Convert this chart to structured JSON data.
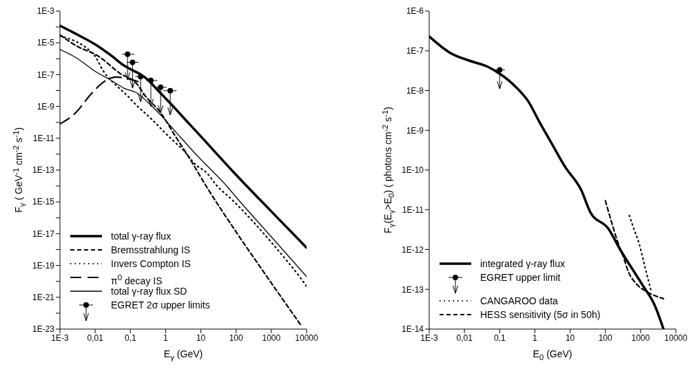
{
  "chart_data": [
    {
      "type": "line",
      "xlabel": "E$_{γ}$  (GeV)",
      "ylabel": "F$_{γ}$ ( GeV$^{-1}$ cm$^{-2}$ s$^{-1}$)",
      "log": "xy",
      "legend": "bottom left",
      "xlim": [
        0.001,
        10000
      ],
      "ylim": [
        1e-23,
        0.001
      ],
      "xticks": [
        {
          "value": 0.001,
          "label": "1E-3"
        },
        {
          "value": 0.01,
          "label": "0,01"
        },
        {
          "value": 0.1,
          "label": "0,1"
        },
        1,
        10,
        100,
        1000,
        10000
      ],
      "yticks": [
        {
          "value": 1e-23,
          "label": "1E-23"
        },
        {
          "value": 1e-22,
          "label": null
        },
        {
          "value": 1e-21,
          "label": "1E-21"
        },
        {
          "value": 1e-20,
          "label": null
        },
        {
          "value": 1e-19,
          "label": "1E-19"
        },
        {
          "value": 1e-18,
          "label": null
        },
        {
          "value": 1e-17,
          "label": "1E-17"
        },
        {
          "value": 1e-16,
          "label": null
        },
        {
          "value": 1e-15,
          "label": "1E-15"
        },
        {
          "value": 1e-14,
          "label": null
        },
        {
          "value": 1e-13,
          "label": "1E-13"
        },
        {
          "value": 1e-12,
          "label": null
        },
        {
          "value": 1e-11,
          "label": "1E-11"
        },
        {
          "value": 1e-10,
          "label": null
        },
        {
          "value": 1e-09,
          "label": "1E-9"
        },
        {
          "value": 1e-08,
          "label": null
        },
        {
          "value": 1e-07,
          "label": "1E-7"
        },
        {
          "value": 1e-06,
          "label": null
        },
        {
          "value": 1e-05,
          "label": "1E-5"
        },
        {
          "value": 0.0001,
          "label": null
        },
        {
          "value": 0.001,
          "label": "1E-3"
        }
      ],
      "series": [
        {
          "name": "total γ-ray flux",
          "color": "#000000",
          "line_style": "solid",
          "x": [
            0.001,
            0.0032,
            0.01,
            0.032,
            0.063,
            0.1,
            0.2,
            0.32,
            0.5,
            1,
            2,
            3.2,
            10,
            100,
            1000,
            10000
          ],
          "values": [
            0.00012,
            3.2e-05,
            7.9e-06,
            1.3e-06,
            4e-07,
            2.2e-07,
            1e-07,
            4.5e-08,
            1.6e-08,
            3.2e-09,
            6.3e-10,
            2e-10,
            1.3e-11,
            5e-14,
            2.5e-16,
            1.3e-18
          ]
        },
        {
          "name": "Bremsstrahlung IS",
          "color": "#000000",
          "line_style": "dashed",
          "x": [
            0.001,
            0.0028,
            0.0126,
            0.048,
            0.16,
            0.25,
            0.72,
            1.8,
            5.2,
            15,
            100,
            1000,
            7100
          ],
          "values": [
            3.2e-05,
            6.8e-06,
            1.4e-06,
            1.3e-07,
            2.3e-08,
            5.4e-09,
            4e-10,
            1.6e-11,
            4e-13,
            7.9e-15,
            1.3e-17,
            7.9e-21,
            1.6e-23
          ]
        },
        {
          "name": "Invers Compton IS",
          "color": "#000000",
          "line_style": "dotted",
          "x": [
            0.001,
            0.0095,
            0.017,
            0.048,
            0.089,
            0.16,
            0.3,
            0.55,
            1,
            1.8,
            3.3,
            6.9,
            15,
            26,
            81,
            1170,
            7100,
            10000
          ],
          "values": [
            2.7e-05,
            1.6e-06,
            1.7e-07,
            1.4e-08,
            4e-09,
            1e-09,
            2.9e-10,
            7.9e-11,
            2e-11,
            5.8e-12,
            1.6e-12,
            2.3e-13,
            6.3e-14,
            1.3e-14,
            1.2e-15,
            1.9e-18,
            1.4e-20,
            5e-21
          ]
        },
        {
          "name": "π$^{0}$ decay IS",
          "color": "#000000",
          "line_style": "dashed",
          "x": [
            0.001,
            0.0028,
            0.0079,
            0.023,
            0.04,
            0.063,
            0.1,
            0.2
          ],
          "values": [
            7.9e-11,
            4e-10,
            6.6e-09,
            5.1e-08,
            7.1e-08,
            6.3e-08,
            5e-08,
            3.2e-08
          ]
        },
        {
          "name": "total γ-ray flux SD",
          "color": "#000000",
          "line_style": "solid",
          "x": [
            0.001,
            0.0028,
            0.011,
            0.027,
            0.066,
            0.16,
            0.3,
            0.72,
            1.8,
            6.9,
            58,
            100,
            1000,
            10000
          ],
          "values": [
            3.8e-06,
            1.2e-06,
            1.4e-07,
            4.7e-08,
            1.4e-08,
            6.6e-09,
            2e-09,
            2.9e-10,
            3e-11,
            1.1e-12,
            8.3e-15,
            2e-15,
            6.3e-18,
            2e-20
          ]
        },
        {
          "name": "EGRET 2σ upper limits",
          "type": "scatter",
          "color": "#000000",
          "marker": "circle",
          "x": [
            0.083,
            0.115,
            0.195,
            0.38,
            0.72,
            1.35
          ],
          "values": [
            1.9e-06,
            5.9e-07,
            7.6e-08,
            4.3e-08,
            1.6e-08,
            9.8e-09
          ],
          "errors": [
            [
              4.7e-08,
              1.9e-06
            ],
            [
              1.4e-08,
              5.9e-07
            ],
            [
              2e-09,
              7.6e-08
            ],
            [
              1e-09,
              4.3e-08
            ],
            [
              3.9e-10,
              1.6e-08
            ],
            [
              2.9e-10,
              9.8e-09
            ]
          ],
          "xerrors": [
            [
              0.058,
              0.129
            ],
            [
              0.079,
              0.17
            ],
            [
              0.14,
              0.27
            ],
            [
              0.28,
              0.58
            ],
            [
              0.48,
              1.07
            ],
            [
              0.87,
              2.04
            ]
          ]
        }
      ]
    },
    {
      "type": "line",
      "xlabel": "E$_{0}$  (GeV)",
      "ylabel": "F$_{γ}$(E$_{γ}$>E$_{0}$)  ( photons cm$^{-2}$ s$^{-1}$)",
      "log": "xy",
      "legend": "bottom left",
      "xlim": [
        0.001,
        10000
      ],
      "ylim": [
        1e-14,
        1e-06
      ],
      "xticks": [
        {
          "value": 0.001,
          "label": "1E-3"
        },
        {
          "value": 0.01,
          "label": "0,01"
        },
        {
          "value": 0.1,
          "label": "0,1"
        },
        1,
        10,
        100,
        1000,
        10000
      ],
      "yticks": [
        {
          "value": 1e-14,
          "label": "1E-14"
        },
        {
          "value": 1e-13,
          "label": "1E-13"
        },
        {
          "value": 1e-12,
          "label": "1E-12"
        },
        {
          "value": 1e-11,
          "label": "1E-11"
        },
        {
          "value": 1e-10,
          "label": "1E-10"
        },
        {
          "value": 1e-09,
          "label": "1E-9"
        },
        {
          "value": 1e-08,
          "label": "1E-8"
        },
        {
          "value": 1e-07,
          "label": "1E-7"
        },
        {
          "value": 1e-06,
          "label": "1E-6"
        }
      ],
      "series": [
        {
          "name": "integrated γ-ray flux",
          "color": "#000000",
          "line_style": "solid",
          "x": [
            0.001,
            0.0039,
            0.015,
            0.045,
            0.11,
            0.27,
            0.66,
            1.35,
            2.9,
            7.2,
            20.4,
            38,
            120,
            263,
            1120,
            2500,
            4470
          ],
          "values": [
            2.3e-07,
            8.9e-08,
            5.5e-08,
            4e-08,
            2.5e-08,
            1.3e-08,
            5.2e-09,
            1.6e-09,
            4.9e-10,
            1.2e-10,
            3.2e-11,
            8.5e-12,
            3.4e-12,
            1e-12,
            1.3e-13,
            4e-14,
            1e-14
          ]
        },
        {
          "name": "EGRET upper limit",
          "type": "scatter",
          "color": "#000000",
          "marker": "circle",
          "x": [
            0.1
          ],
          "values": [
            3.3e-08
          ],
          "errors": [
            [
              1.1e-08,
              3.3e-08
            ]
          ],
          "xerrors": [
            [
              0.063,
              0.14
            ]
          ]
        },
        {
          "name": "CANGAROO data",
          "color": "#000000",
          "line_style": "dotted",
          "x": [
            479,
            631,
            891,
            1380,
            2000
          ],
          "values": [
            7.2e-12,
            3.5e-12,
            1.5e-12,
            3.2e-13,
            8.9e-14
          ]
        },
        {
          "name": "HESS sensitivity (5σ in 50h)",
          "color": "#000000",
          "line_style": "dashed",
          "x": [
            100,
            155,
            240,
            331,
            447,
            741,
            1580,
            4470
          ],
          "values": [
            1.7e-11,
            4.4e-12,
            1.3e-12,
            6.2e-13,
            2.8e-13,
            1.4e-13,
            8.5e-14,
            5.8e-14
          ]
        }
      ]
    }
  ]
}
